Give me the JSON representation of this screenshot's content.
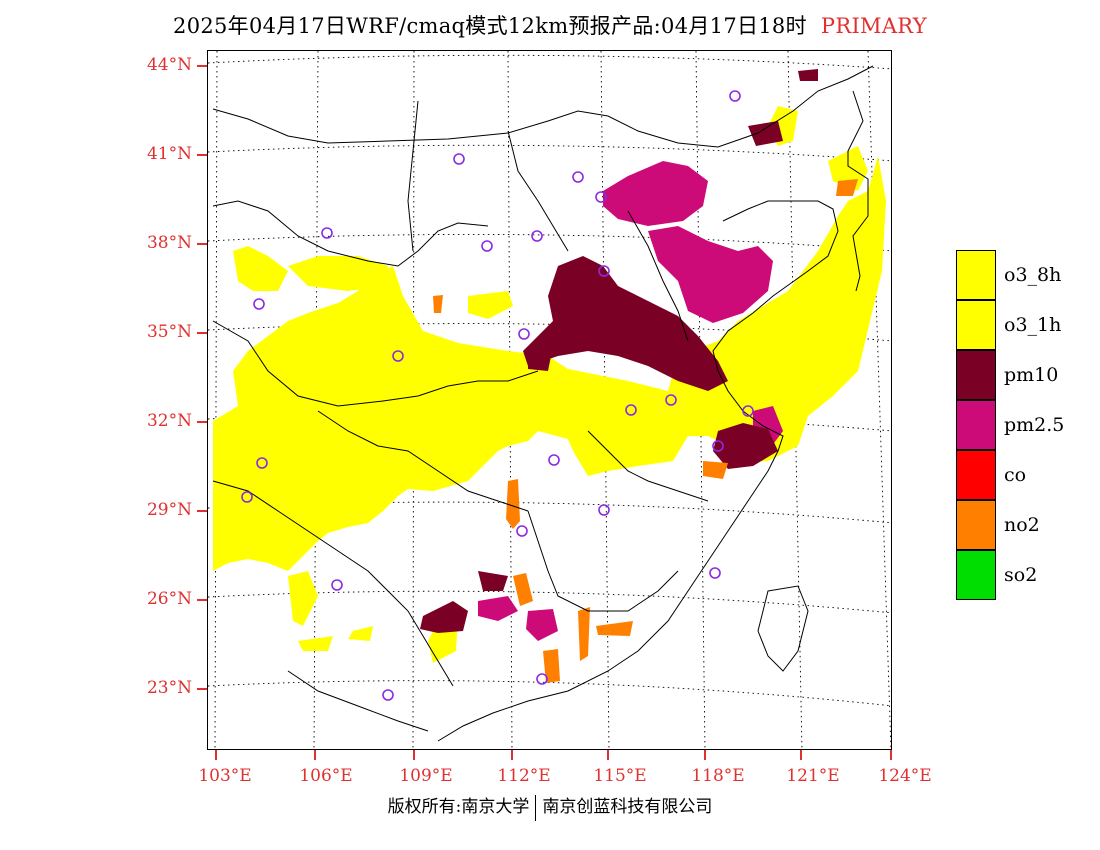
{
  "title": "2025年04月17日WRF/cmaq模式12km预报产品:04月17日18时",
  "title_tag": "PRIMARY",
  "lat_labels": [
    "44°N",
    "41°N",
    "38°N",
    "35°N",
    "32°N",
    "29°N",
    "26°N",
    "23°N"
  ],
  "lon_labels": [
    "103°E",
    "106°E",
    "109°E",
    "112°E",
    "115°E",
    "118°E",
    "121°E",
    "124°E"
  ],
  "legend": [
    {
      "label": "o3_8h",
      "color": "#ffff00"
    },
    {
      "label": "o3_1h",
      "color": "#ffff00"
    },
    {
      "label": "pm10",
      "color": "#7a0026"
    },
    {
      "label": "pm2.5",
      "color": "#cc0a78"
    },
    {
      "label": "co",
      "color": "#ff0000"
    },
    {
      "label": "no2",
      "color": "#ff7f00"
    },
    {
      "label": "so2",
      "color": "#00dd00"
    }
  ],
  "footer_left": "版权所有:南京大学",
  "footer_right": "南京创蓝科技有限公司",
  "station_marker_color": "#8a2be2"
}
